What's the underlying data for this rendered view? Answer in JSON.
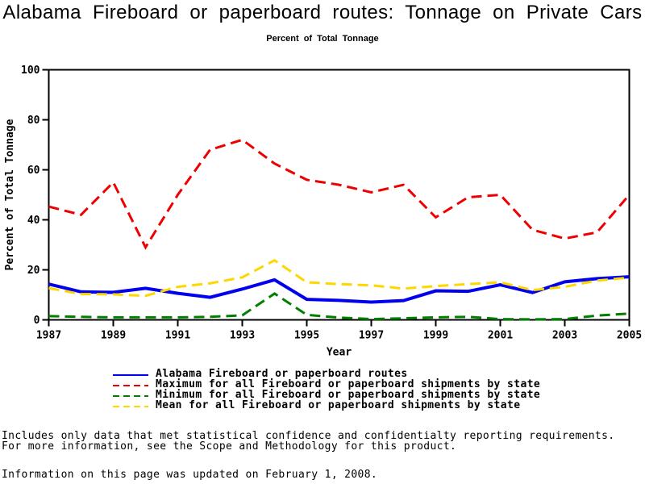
{
  "title": "Alabama Fireboard or paperboard routes: Tonnage on Private Cars",
  "subtitle": "Percent of Total Tonnage",
  "chart_data": {
    "type": "line",
    "x": [
      1987,
      1988,
      1989,
      1990,
      1991,
      1992,
      1993,
      1994,
      1995,
      1996,
      1997,
      1998,
      1999,
      2000,
      2001,
      2002,
      2003,
      2004,
      2005
    ],
    "x_ticks": [
      1987,
      1989,
      1991,
      1993,
      1995,
      1997,
      1999,
      2001,
      2003,
      2005
    ],
    "y_ticks": [
      0,
      20,
      40,
      60,
      80,
      100
    ],
    "ylim": [
      0,
      100
    ],
    "xlabel": "Year",
    "ylabel": "Percent of Total Tonnage",
    "grid": false,
    "legend_position": "bottom",
    "series": [
      {
        "name": "Alabama Fireboard or paperboard routes",
        "color": "#0000EE",
        "style": "solid",
        "values": [
          14.3,
          11.2,
          11.0,
          12.6,
          10.6,
          9.0,
          12.3,
          16.0,
          8.2,
          7.8,
          7.1,
          7.7,
          11.6,
          11.4,
          14.0,
          10.9,
          15.2,
          16.5,
          17.2
        ]
      },
      {
        "name": "Maximum for all Fireboard or paperboard shipments by state",
        "color": "#EE0000",
        "style": "dashed",
        "values": [
          45.3,
          42.0,
          55.0,
          29.0,
          50.0,
          68.0,
          72.0,
          62.5,
          56.0,
          54.0,
          51.0,
          54.0,
          41.0,
          49.0,
          50.0,
          36.0,
          32.5,
          35.0,
          50.0
        ]
      },
      {
        "name": "Minimum for all Fireboard or paperboard shipments by state",
        "color": "#008000",
        "style": "dashed",
        "values": [
          1.5,
          1.2,
          1.0,
          1.0,
          1.0,
          1.2,
          1.8,
          10.5,
          2.0,
          0.9,
          0.3,
          0.6,
          1.0,
          1.2,
          0.3,
          0.2,
          0.3,
          1.7,
          2.5
        ]
      },
      {
        "name": "Mean for all Fireboard or paperboard shipments by state",
        "color": "#FFD700",
        "style": "dashed",
        "values": [
          12.7,
          10.3,
          10.2,
          9.6,
          13.2,
          14.6,
          17.0,
          23.8,
          15.0,
          14.3,
          13.8,
          12.5,
          13.5,
          14.3,
          15.0,
          11.9,
          13.2,
          15.7,
          16.9
        ]
      }
    ]
  },
  "footnotes": {
    "line1": "Includes only data that met statistical confidence and confidentialty reporting requirements.",
    "line2": "For more information, see the Scope and Methodology for this product.",
    "updated": "Information on this page was updated on February 1, 2008."
  }
}
